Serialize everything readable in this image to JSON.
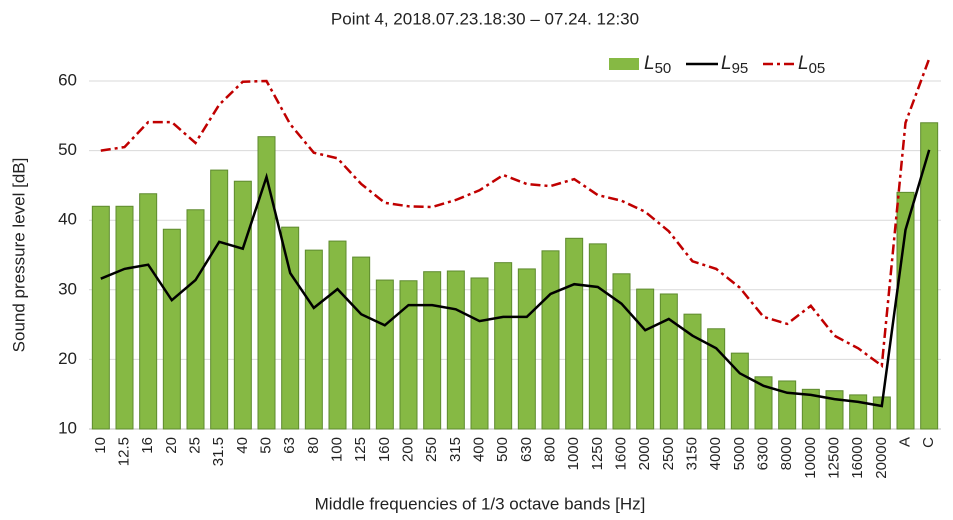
{
  "chart_data": {
    "type": "bar-line",
    "title": "Point  4, 2018.07.23.18:30 – 07.24. 12:30",
    "x_label": "Middle frequencies of 1/3 octave bands [Hz]",
    "y_label": "Sound pressure level  [dB]",
    "categories": [
      "10",
      "12.5",
      "16",
      "20",
      "25",
      "31.5",
      "40",
      "50",
      "63",
      "80",
      "100",
      "125",
      "160",
      "200",
      "250",
      "315",
      "400",
      "500",
      "630",
      "800",
      "1000",
      "1250",
      "1600",
      "2000",
      "2500",
      "3150",
      "4000",
      "5000",
      "6300",
      "8000",
      "10000",
      "12500",
      "16000",
      "20000",
      "A",
      "C"
    ],
    "series": [
      {
        "name": "L50",
        "kind": "bar",
        "color": "#86b944",
        "values": [
          42.0,
          42.0,
          43.8,
          38.7,
          41.5,
          47.2,
          45.6,
          52.0,
          39.0,
          35.7,
          37.0,
          34.7,
          31.4,
          31.3,
          32.6,
          32.7,
          31.7,
          33.9,
          33.0,
          35.6,
          37.4,
          36.6,
          32.3,
          30.1,
          29.4,
          26.5,
          24.4,
          20.9,
          17.5,
          16.9,
          15.7,
          15.5,
          14.9,
          14.6,
          44.0,
          54.0
        ]
      },
      {
        "name": "L95",
        "kind": "line",
        "color": "#000000",
        "dash": "solid",
        "values": [
          31.6,
          33.0,
          33.6,
          28.5,
          31.4,
          36.9,
          35.9,
          46.2,
          32.4,
          27.4,
          30.1,
          26.5,
          24.9,
          27.8,
          27.8,
          27.2,
          25.5,
          26.1,
          26.1,
          29.4,
          30.8,
          30.4,
          28.0,
          24.2,
          25.8,
          23.4,
          21.6,
          18.0,
          16.2,
          15.2,
          14.9,
          14.3,
          13.9,
          13.3,
          38.6,
          50.1
        ]
      },
      {
        "name": "L05",
        "kind": "line",
        "color": "#c00000",
        "dash": "dashdot",
        "values": [
          50.0,
          50.5,
          54.1,
          54.1,
          51.1,
          56.6,
          59.9,
          60.0,
          53.8,
          49.7,
          48.9,
          45.2,
          42.5,
          42.0,
          41.9,
          42.9,
          44.3,
          46.5,
          45.2,
          44.9,
          45.9,
          43.6,
          42.8,
          41.2,
          38.4,
          34.1,
          33.0,
          30.3,
          26.1,
          25.1,
          27.7,
          23.4,
          21.6,
          19.1,
          54.0,
          63.2
        ]
      }
    ],
    "ylim": [
      10,
      60
    ],
    "yticks": [
      10,
      20,
      30,
      40,
      50,
      60
    ],
    "grid": true,
    "legend": "top-right"
  }
}
